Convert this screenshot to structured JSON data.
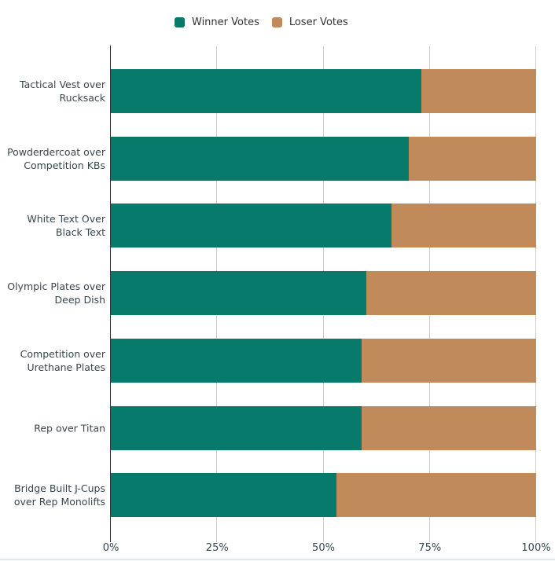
{
  "chart_data": {
    "type": "bar",
    "orientation": "horizontal",
    "stacked": true,
    "title": "",
    "xlabel": "",
    "ylabel": "",
    "categories": [
      "Tactical Vest over Rucksack",
      "Powderdercoat over Competition KBs",
      "White Text Over Black Text",
      "Olympic Plates over Deep Dish",
      "Competition over Urethane Plates",
      "Rep over Titan",
      "Bridge Built J-Cups over Rep Monolifts"
    ],
    "series": [
      {
        "name": "Winner Votes",
        "color": "#087a6c",
        "values": [
          73,
          70,
          66,
          60,
          59,
          59,
          53
        ]
      },
      {
        "name": "Loser Votes",
        "color": "#c08a5b",
        "values": [
          27,
          30,
          34,
          40,
          41,
          41,
          47
        ]
      }
    ],
    "xlim": [
      0,
      100
    ],
    "x_ticks": [
      "0%",
      "25%",
      "50%",
      "75%",
      "100%"
    ],
    "x_tick_values": [
      0,
      25,
      50,
      75,
      100
    ],
    "grid": true,
    "legend_position": "top-center",
    "colors": {
      "gridline": "#cccccc",
      "axis_line": "#333333",
      "label_text": "#37474f",
      "legend_text": "#333333",
      "background": "#ffffff"
    }
  }
}
